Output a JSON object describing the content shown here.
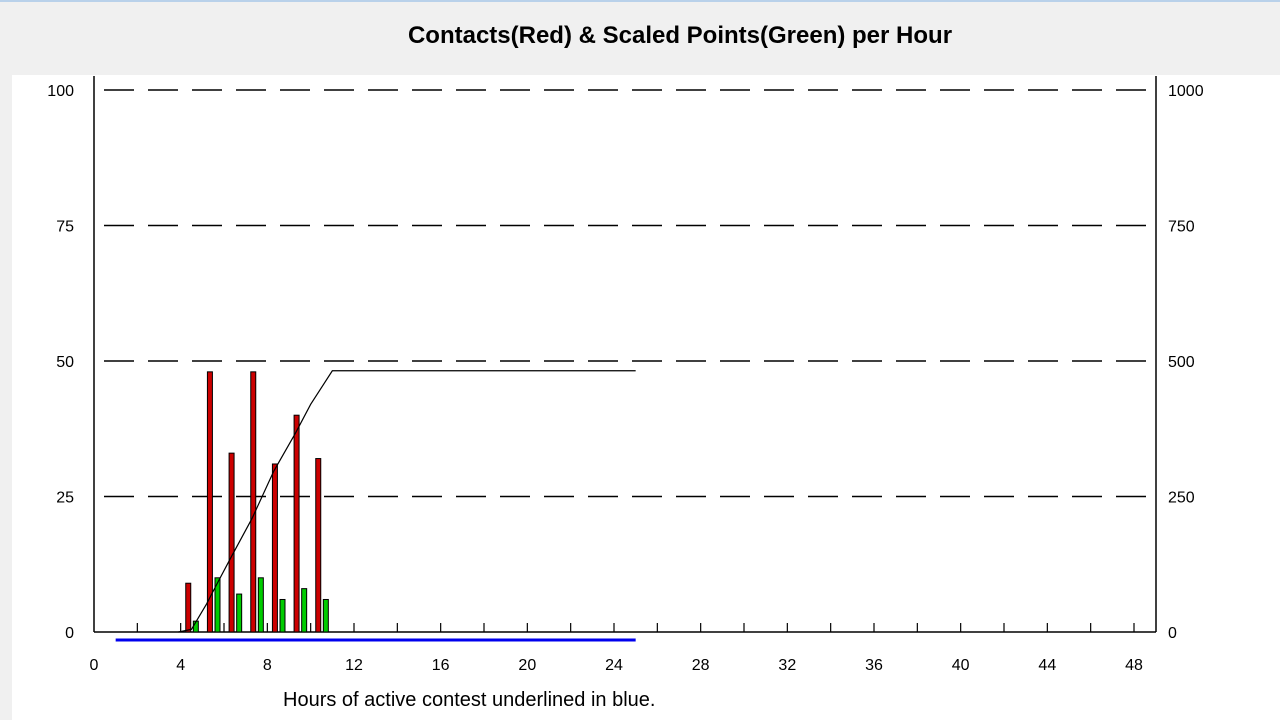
{
  "chart_data": {
    "type": "bar",
    "title": "Contacts(Red) & Scaled Points(Green) per Hour",
    "xlabel": "Hours of active contest underlined in blue.",
    "xlim": [
      0,
      48
    ],
    "x_ticks": [
      0,
      4,
      8,
      12,
      16,
      20,
      24,
      28,
      32,
      36,
      40,
      44,
      48
    ],
    "ylim_left": [
      0,
      100
    ],
    "y_ticks_left": [
      0,
      25,
      50,
      75,
      100
    ],
    "ylim_right": [
      0,
      1000
    ],
    "y_ticks_right": [
      0,
      250,
      500,
      750,
      1000
    ],
    "grid": "dashed horizontal",
    "hours": [
      4,
      5,
      6,
      7,
      8,
      9,
      10
    ],
    "series": [
      {
        "name": "Contacts",
        "color": "#cc0000",
        "values": [
          9,
          48,
          33,
          48,
          31,
          40,
          32
        ]
      },
      {
        "name": "Scaled Points",
        "color": "#00cc00",
        "values": [
          2,
          10,
          7,
          10,
          6,
          8,
          6
        ]
      },
      {
        "name": "Cumulative (right axis)",
        "color": "#000000",
        "x": [
          3.9,
          4.5,
          5.2,
          5.6,
          6.3,
          7.3,
          8.3,
          9.3,
          10.0,
          11.0,
          25.0
        ],
        "values": [
          0,
          5,
          52,
          83,
          136,
          210,
          297,
          367,
          420,
          482,
          482
        ]
      }
    ],
    "active_range": [
      1,
      25
    ],
    "active_color": "#0000ee"
  }
}
